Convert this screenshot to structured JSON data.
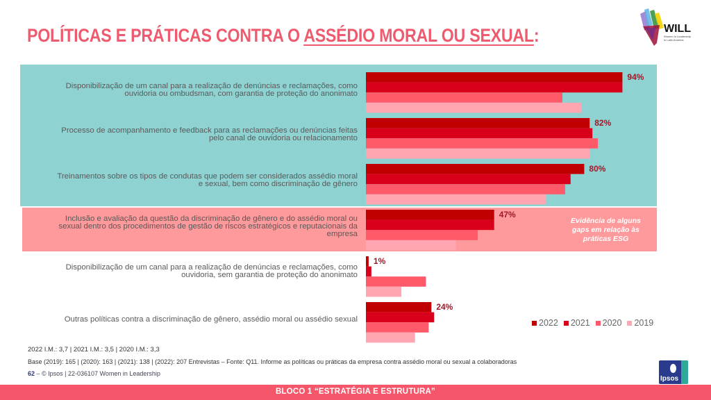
{
  "header": {
    "title_part1": "POLÍTICAS E PRÁTICAS CONTRA O ",
    "title_underlined": "ASSÉDIO MORAL OU SEXUAL",
    "title_colon": ":",
    "logo_text": "WILL",
    "logo_subtitle_1": "Women in Leadership",
    "logo_subtitle_2": "in Latin America"
  },
  "chart_data": {
    "type": "bar",
    "orientation": "horizontal",
    "title": "POLÍTICAS E PRÁTICAS CONTRA O ASSÉDIO MORAL OU SEXUAL:",
    "categories": [
      [
        "Disponibilização de um canal para a realização de denúncias  e reclamações, como",
        "ouvidoria ou ombudsman, com garantia de proteção do anonimato"
      ],
      [
        "Processo de acompanhamento e feedback para as reclamações ou denúncias feitas",
        "pelo canal de ouvidoria ou relacionamento"
      ],
      [
        "Treinamentos  sobre os tipos de condutas que podem ser considerados assédio moral",
        "e sexual,  bem como discriminação de gênero"
      ],
      [
        "Inclusão  e avaliação da questão da discriminação de gênero e do assédio moral ou",
        "sexual  dentro dos procedimentos de gestão de riscos estratégicos e reputacionais da",
        "empresa"
      ],
      [
        "Disponibilização de um canal para a realização de denúncias  e reclamações, como",
        "ouvidoria, sem garantia de proteção do anonimato"
      ],
      [
        "Outras políticas contra a discriminação de gênero, assédio moral ou assédio sexual"
      ]
    ],
    "series": [
      {
        "name": "2022",
        "color": "#c00000",
        "values": [
          94,
          82,
          80,
          47,
          1,
          24
        ]
      },
      {
        "name": "2021",
        "color": "#d9001b",
        "values": [
          94,
          83,
          75,
          47,
          2,
          25
        ]
      },
      {
        "name": "2020",
        "color": "#ff5a6a",
        "values": [
          72,
          85,
          73,
          41,
          22,
          23
        ]
      },
      {
        "name": "2019",
        "color": "#ffa6b2",
        "values": [
          79,
          82,
          66,
          33,
          13,
          18
        ]
      }
    ],
    "data_labels": [
      "94%",
      "82%",
      "80%",
      "47%",
      "1%",
      "24%"
    ],
    "data_label_color": "#a01828",
    "xlim": [
      0,
      100
    ],
    "grid": false,
    "legend_position": "bottom-right",
    "legend": [
      "2022",
      "2021",
      "2020",
      "2019"
    ]
  },
  "highlight": {
    "teal_color": "#8ed2d2",
    "pink_color": "#ff9a9c",
    "esg_note": [
      "Evidência de alguns",
      "gaps em relação às",
      "práticas ESG"
    ]
  },
  "footer": {
    "im_line": "2022 I.M.: 3,7  | 2021 I.M.: 3,5  |  2020 I.M.: 3,3",
    "base_line": "Base (2019): 165 | (2020): 163 |  (2021): 138 | (2022): 207 Entrevistas – Fonte: Q11. Informe as políticas ou práticas da empresa contra assédio moral ou sexual a colaboradoras",
    "page_number": "62",
    "dash": " – ",
    "copyright": "© Ipsos | 22-036107 Women in Leadership",
    "ipsos_logo": "Ipsos",
    "band_text": "BLOCO 1 “ESTRATÉGIA  E ESTRUTURA”",
    "band_color": "#f5566a"
  }
}
